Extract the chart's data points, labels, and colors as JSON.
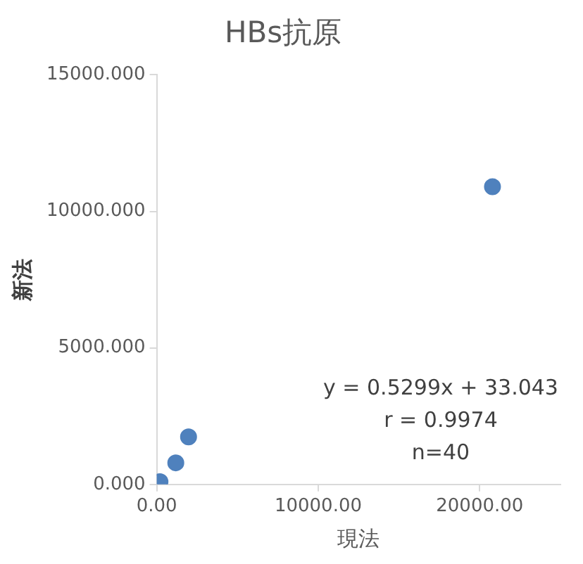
{
  "chart_data": {
    "type": "scatter",
    "title": "HBs抗原",
    "xlabel": "現法",
    "ylabel": "新法",
    "x": [
      20790,
      1970,
      1180,
      200
    ],
    "values": [
      10900,
      1740,
      790,
      100
    ],
    "color": "#4f81bd",
    "marker": "circle",
    "xlim": [
      0,
      25000
    ],
    "xticks": [
      {
        "value": 0,
        "label": "0.00"
      },
      {
        "value": 10000,
        "label": "10000.00"
      },
      {
        "value": 20000,
        "label": "20000.00"
      }
    ],
    "ylim": [
      0,
      15000
    ],
    "yticks": [
      {
        "value": 0,
        "label": "0.000"
      },
      {
        "value": 5000,
        "label": "5000.000"
      },
      {
        "value": 10000,
        "label": "10000.000"
      },
      {
        "value": 15000,
        "label": "15000.000"
      }
    ],
    "grid": false,
    "legend": false,
    "annotations": [
      "y = 0.5299x + 33.043",
      "r = 0.9974",
      "n=40"
    ]
  }
}
